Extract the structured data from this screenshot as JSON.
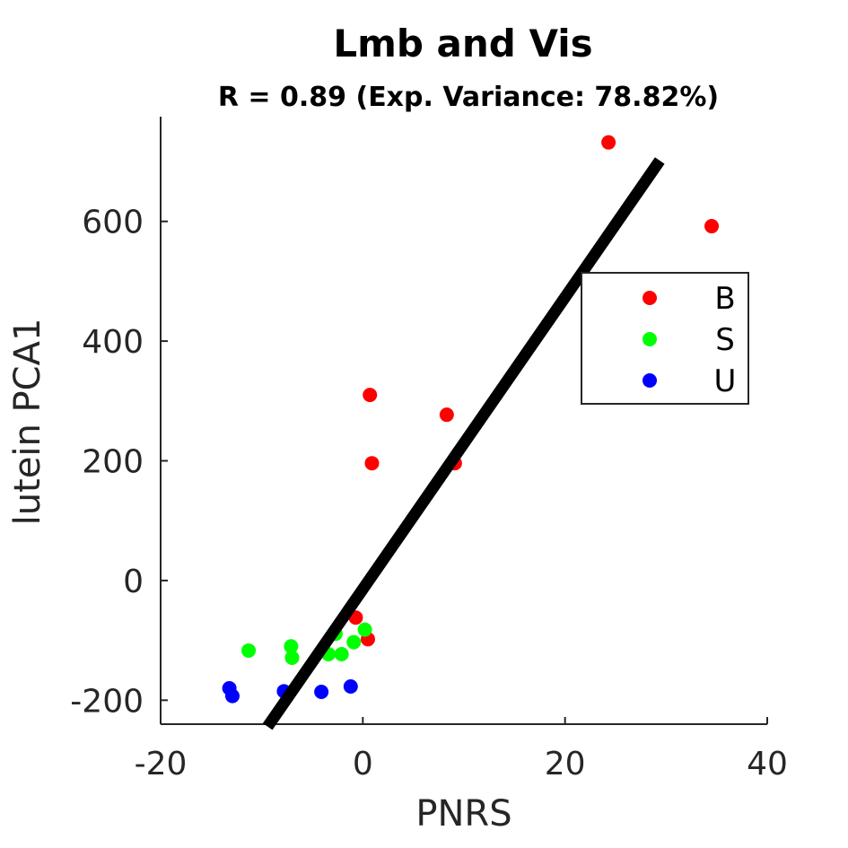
{
  "chart_data": {
    "type": "scatter",
    "title": "Lmb and Vis",
    "subtitle": "R = 0.89 (Exp. Variance: 78.82%)",
    "xlabel": "PNRS",
    "ylabel": "lutein PCA1",
    "xlim": [
      -20,
      40
    ],
    "ylim": [
      -240,
      775
    ],
    "xticks": [
      -20,
      0,
      20,
      40
    ],
    "yticks": [
      -200,
      0,
      200,
      400,
      600
    ],
    "xtick_labels": [
      "-20",
      "0",
      "20",
      "40"
    ],
    "ytick_labels": [
      "-200",
      "0",
      "200",
      "400",
      "600"
    ],
    "grid": false,
    "legend_position": "right",
    "series": [
      {
        "name": "B",
        "color": "#ff0000",
        "points": [
          {
            "x": 24.3,
            "y": 732
          },
          {
            "x": 34.5,
            "y": 592
          },
          {
            "x": 0.7,
            "y": 310
          },
          {
            "x": 8.3,
            "y": 277
          },
          {
            "x": 0.9,
            "y": 196
          },
          {
            "x": 9.1,
            "y": 196
          },
          {
            "x": -0.7,
            "y": -62
          },
          {
            "x": 0.5,
            "y": -98
          }
        ]
      },
      {
        "name": "S",
        "color": "#00ff00",
        "points": [
          {
            "x": 0.2,
            "y": -82
          },
          {
            "x": -0.9,
            "y": -103
          },
          {
            "x": -2.7,
            "y": -89
          },
          {
            "x": -7.1,
            "y": -110
          },
          {
            "x": -7.0,
            "y": -129
          },
          {
            "x": -11.3,
            "y": -117
          },
          {
            "x": -3.4,
            "y": -123
          },
          {
            "x": -2.1,
            "y": -123
          }
        ]
      },
      {
        "name": "U",
        "color": "#0000ff",
        "points": [
          {
            "x": -13.2,
            "y": -180
          },
          {
            "x": -12.9,
            "y": -193
          },
          {
            "x": -7.8,
            "y": -185
          },
          {
            "x": -4.1,
            "y": -186
          },
          {
            "x": -1.2,
            "y": -177
          }
        ]
      }
    ],
    "fit_line": {
      "color": "#000000",
      "slope": 24.38,
      "intercept": -14.4,
      "x_range": [
        -9.42,
        29.37
      ]
    }
  }
}
